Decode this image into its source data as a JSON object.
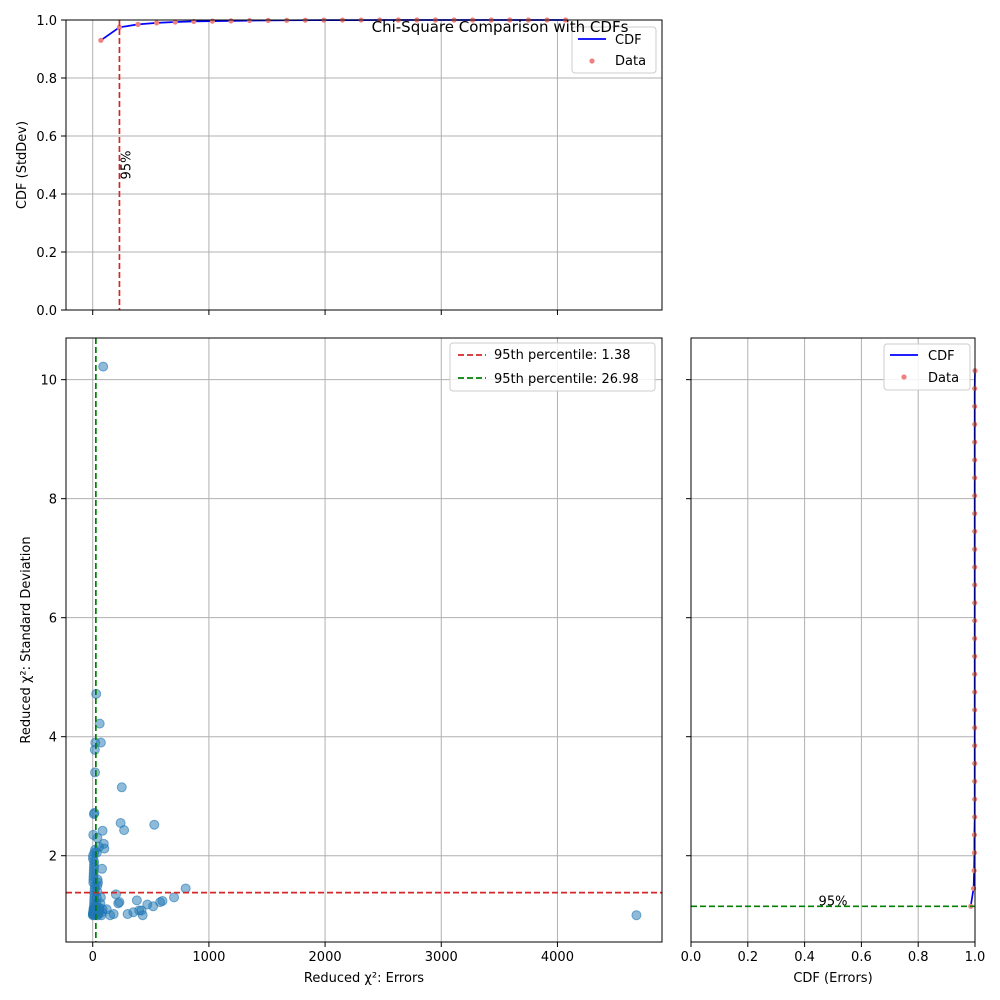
{
  "title": "Chi-Square Comparison with CDFs",
  "chart_data": [
    {
      "id": "scatter",
      "type": "scatter",
      "xlabel": "Reduced χ²: Errors",
      "ylabel": "Reduced χ²: Standard Deviation",
      "xlim": [
        -230,
        4900
      ],
      "ylim": [
        0.55,
        10.7
      ],
      "xticks": [
        0,
        1000,
        2000,
        3000,
        4000
      ],
      "yticks": [
        2,
        4,
        6,
        8,
        10
      ],
      "grid": true,
      "legend_position": "top-right",
      "color": "#1f77b4",
      "hlines": [
        {
          "y": 1.38,
          "label": "95th percentile: 1.38",
          "color": "#d62728"
        }
      ],
      "vlines": [
        {
          "x": 26.98,
          "label": "95th percentile: 26.98",
          "color": "#008000"
        }
      ],
      "points": [
        [
          1,
          1.0
        ],
        [
          2,
          1.02
        ],
        [
          3,
          1.03
        ],
        [
          4,
          1.05
        ],
        [
          5,
          1.01
        ],
        [
          6,
          1.08
        ],
        [
          7,
          1.1
        ],
        [
          8,
          1.04
        ],
        [
          9,
          1.12
        ],
        [
          10,
          1.06
        ],
        [
          11,
          1.15
        ],
        [
          12,
          1.2
        ],
        [
          13,
          1.25
        ],
        [
          14,
          1.3
        ],
        [
          15,
          1.35
        ],
        [
          16,
          1.4
        ],
        [
          17,
          1.45
        ],
        [
          18,
          1.5
        ],
        [
          5,
          1.55
        ],
        [
          6,
          1.6
        ],
        [
          7,
          1.65
        ],
        [
          8,
          1.7
        ],
        [
          9,
          1.75
        ],
        [
          10,
          1.8
        ],
        [
          11,
          1.85
        ],
        [
          12,
          1.9
        ],
        [
          2,
          1.95
        ],
        [
          3,
          2.0
        ],
        [
          14,
          2.05
        ],
        [
          20,
          2.1
        ],
        [
          22,
          1.0
        ],
        [
          25,
          1.05
        ],
        [
          28,
          1.1
        ],
        [
          30,
          1.15
        ],
        [
          32,
          1.2
        ],
        [
          35,
          1.3
        ],
        [
          38,
          1.4
        ],
        [
          40,
          1.5
        ],
        [
          42,
          1.6
        ],
        [
          45,
          1.0
        ],
        [
          48,
          1.02
        ],
        [
          50,
          1.04
        ],
        [
          55,
          1.08
        ],
        [
          60,
          1.12
        ],
        [
          65,
          1.2
        ],
        [
          70,
          1.3
        ],
        [
          75,
          1.0
        ],
        [
          80,
          1.05
        ],
        [
          85,
          1.1
        ],
        [
          5,
          2.35
        ],
        [
          10,
          2.7
        ],
        [
          15,
          2.72
        ],
        [
          20,
          3.4
        ],
        [
          18,
          3.78
        ],
        [
          22,
          3.9
        ],
        [
          30,
          4.72
        ],
        [
          60,
          4.22
        ],
        [
          70,
          3.9
        ],
        [
          90,
          10.22
        ],
        [
          95,
          2.2
        ],
        [
          100,
          2.12
        ],
        [
          85,
          2.42
        ],
        [
          40,
          2.3
        ],
        [
          55,
          2.15
        ],
        [
          35,
          2.05
        ],
        [
          45,
          1.55
        ],
        [
          80,
          1.78
        ],
        [
          120,
          1.1
        ],
        [
          150,
          1.0
        ],
        [
          180,
          1.02
        ],
        [
          200,
          1.35
        ],
        [
          220,
          1.2
        ],
        [
          230,
          1.22
        ],
        [
          240,
          2.55
        ],
        [
          250,
          3.15
        ],
        [
          270,
          2.43
        ],
        [
          300,
          1.02
        ],
        [
          350,
          1.05
        ],
        [
          380,
          1.25
        ],
        [
          400,
          1.08
        ],
        [
          420,
          1.08
        ],
        [
          430,
          1.0
        ],
        [
          470,
          1.18
        ],
        [
          520,
          1.15
        ],
        [
          530,
          2.52
        ],
        [
          580,
          1.22
        ],
        [
          600,
          1.24
        ],
        [
          700,
          1.3
        ],
        [
          800,
          1.45
        ],
        [
          4680,
          1.0
        ]
      ]
    },
    {
      "id": "top-cdf",
      "type": "line",
      "ylabel": "CDF (StdDev)",
      "xlim": [
        -230,
        4900
      ],
      "ylim": [
        0.0,
        1.0
      ],
      "yticks": [
        0.0,
        0.2,
        0.4,
        0.6,
        0.8,
        1.0
      ],
      "ytick_labels": [
        "0.0",
        "0.2",
        "0.4",
        "0.6",
        "0.8",
        "1.0"
      ],
      "grid": true,
      "legend_position": "top-right",
      "cdf_color": "#0000ff",
      "data_color": "#f08080",
      "series": [
        {
          "name": "CDF",
          "x": [
            70,
            230,
            390,
            550,
            710,
            870,
            1030,
            1190,
            1350,
            1510,
            1670,
            1830,
            1990,
            2150,
            2310,
            2470,
            2630,
            2790,
            2950,
            3110,
            3270,
            3430,
            3590,
            3750,
            3910,
            4070
          ],
          "y": [
            0.93,
            0.975,
            0.985,
            0.99,
            0.993,
            0.995,
            0.996,
            0.997,
            0.998,
            0.9985,
            0.999,
            0.9993,
            0.9995,
            0.9997,
            0.9998,
            0.9999,
            1.0,
            1.0,
            1.0,
            1.0,
            1.0,
            1.0,
            1.0,
            1.0,
            1.0,
            1.0
          ]
        },
        {
          "name": "Data",
          "x": [
            70,
            230,
            390,
            550,
            710,
            870,
            1030,
            1190,
            1350,
            1510,
            1670,
            1830,
            1990,
            2150,
            2310,
            2470,
            2630,
            2790,
            2950,
            3110,
            3270,
            3430,
            3590,
            3750,
            3910,
            4070
          ],
          "y": [
            0.93,
            0.975,
            0.985,
            0.99,
            0.993,
            0.995,
            0.996,
            0.997,
            0.998,
            0.9985,
            0.999,
            0.9993,
            0.9995,
            0.9997,
            0.9998,
            0.9999,
            1.0,
            1.0,
            1.0,
            1.0,
            1.0,
            1.0,
            1.0,
            1.0,
            1.0,
            1.0
          ]
        }
      ],
      "vline": {
        "x": 230,
        "color": "#d62728",
        "label": "95%"
      }
    },
    {
      "id": "right-cdf",
      "type": "line",
      "xlabel": "CDF (Errors)",
      "xlim": [
        0.0,
        1.0
      ],
      "ylim": [
        0.55,
        10.7
      ],
      "xticks": [
        0.0,
        0.2,
        0.4,
        0.6,
        0.8,
        1.0
      ],
      "xtick_labels": [
        "0.0",
        "0.2",
        "0.4",
        "0.6",
        "0.8",
        "1.0"
      ],
      "grid": true,
      "legend_position": "top-right",
      "cdf_color": "#0000ff",
      "data_color": "#f08080",
      "series": [
        {
          "name": "CDF",
          "y": [
            1.15,
            1.45,
            1.75,
            2.05,
            2.35,
            2.65,
            2.95,
            3.25,
            3.55,
            3.85,
            4.15,
            4.45,
            4.75,
            5.05,
            5.35,
            5.65,
            5.95,
            6.25,
            6.55,
            6.85,
            7.15,
            7.45,
            7.75,
            8.05,
            8.35,
            8.65,
            8.95,
            9.25,
            9.55,
            9.85,
            10.15
          ],
          "x": [
            0.985,
            0.995,
            0.997,
            0.998,
            0.998,
            0.999,
            0.999,
            0.999,
            0.999,
            0.999,
            0.999,
            0.999,
            0.999,
            0.999,
            0.999,
            0.999,
            0.999,
            0.999,
            0.999,
            0.999,
            0.999,
            0.999,
            0.999,
            0.999,
            0.999,
            0.999,
            0.999,
            0.999,
            0.999,
            0.999,
            1.0
          ]
        },
        {
          "name": "Data",
          "y": [
            1.15,
            1.45,
            1.75,
            2.05,
            2.35,
            2.65,
            2.95,
            3.25,
            3.55,
            3.85,
            4.15,
            4.45,
            4.75,
            5.05,
            5.35,
            5.65,
            5.95,
            6.25,
            6.55,
            6.85,
            7.15,
            7.45,
            7.75,
            8.05,
            8.35,
            8.65,
            8.95,
            9.25,
            9.55,
            9.85,
            10.15
          ],
          "x": [
            0.985,
            0.995,
            0.997,
            0.998,
            0.998,
            0.999,
            0.999,
            0.999,
            0.999,
            0.999,
            0.999,
            0.999,
            0.999,
            0.999,
            0.999,
            0.999,
            0.999,
            0.999,
            0.999,
            0.999,
            0.999,
            0.999,
            0.999,
            0.999,
            0.999,
            0.999,
            0.999,
            0.999,
            0.999,
            0.999,
            1.0
          ]
        }
      ],
      "hline": {
        "y": 1.15,
        "color": "#008000",
        "label": "95%"
      }
    }
  ]
}
